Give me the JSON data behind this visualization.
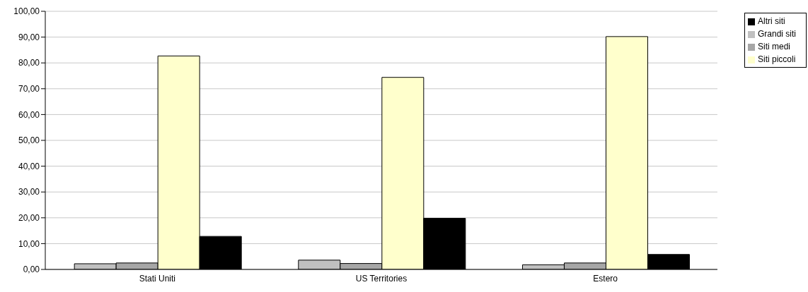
{
  "chart_data": {
    "type": "bar",
    "categories": [
      "Stati Uniti",
      "US Territories",
      "Estero"
    ],
    "series": [
      {
        "name": "Grandi siti",
        "color": "#c0c0c0",
        "values": [
          2.2,
          3.6,
          1.8
        ]
      },
      {
        "name": "Siti medi",
        "color": "#a6a6a6",
        "values": [
          2.5,
          2.3,
          2.5
        ]
      },
      {
        "name": "Siti piccoli",
        "color": "#ffffcc",
        "values": [
          82.7,
          74.4,
          90.2
        ]
      },
      {
        "name": "Altri siti",
        "color": "#000000",
        "values": [
          12.8,
          19.8,
          5.8
        ]
      }
    ],
    "ylim": [
      0,
      100
    ],
    "yticks": [
      {
        "value": 0,
        "label": "0,00"
      },
      {
        "value": 10,
        "label": "10,00"
      },
      {
        "value": 20,
        "label": "20,00"
      },
      {
        "value": 30,
        "label": "30,00"
      },
      {
        "value": 40,
        "label": "40,00"
      },
      {
        "value": 50,
        "label": "50,00"
      },
      {
        "value": 60,
        "label": "60,00"
      },
      {
        "value": 70,
        "label": "70,00"
      },
      {
        "value": 80,
        "label": "80,00"
      },
      {
        "value": 90,
        "label": "90,00"
      },
      {
        "value": 100,
        "label": "100,00"
      }
    ],
    "grid": "y",
    "legend": "top right"
  }
}
